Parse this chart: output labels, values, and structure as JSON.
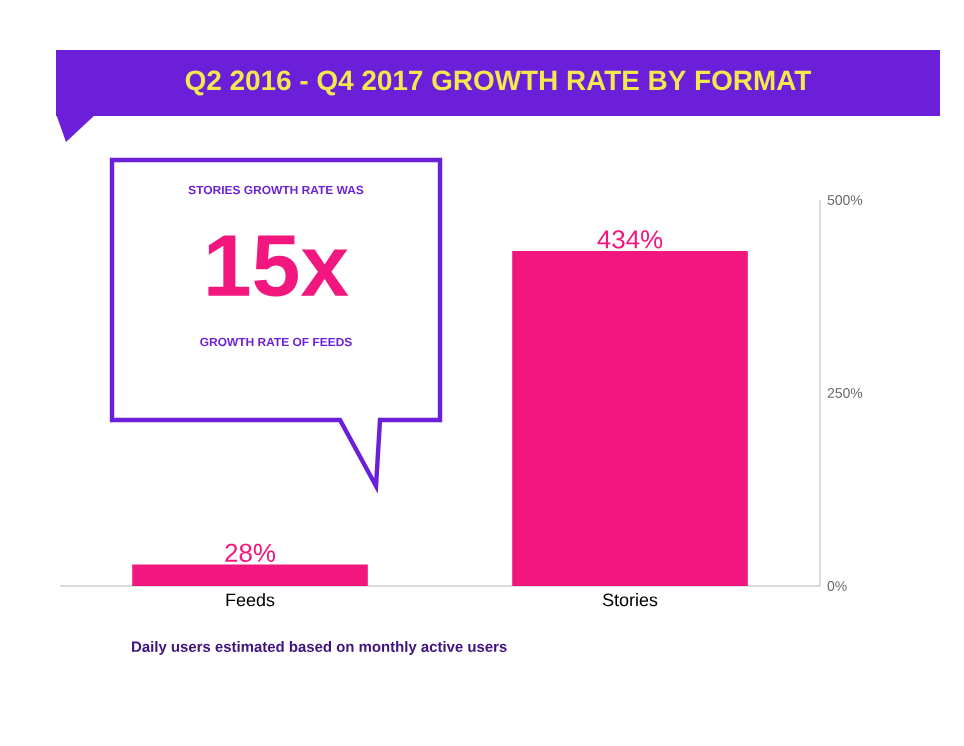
{
  "chart_data": {
    "type": "bar",
    "title": "Q2 2016 - Q4 2017 GROWTH RATE BY FORMAT",
    "categories": [
      "Feeds",
      "Stories"
    ],
    "values": [
      28,
      434
    ],
    "color": "#f2167f",
    "value_labels": [
      "28%",
      "434%"
    ],
    "ylim": [
      0,
      500
    ],
    "yticks": [
      {
        "value": 0,
        "label": "0%"
      },
      {
        "value": 250,
        "label": "250%"
      },
      {
        "value": 500,
        "label": "500%"
      }
    ],
    "annotations": [
      "STORIES GROWTH RATE WAS",
      "15x",
      "GROWTH RATE OF FEEDS",
      "Daily users estimated based on monthly active users"
    ]
  }
}
